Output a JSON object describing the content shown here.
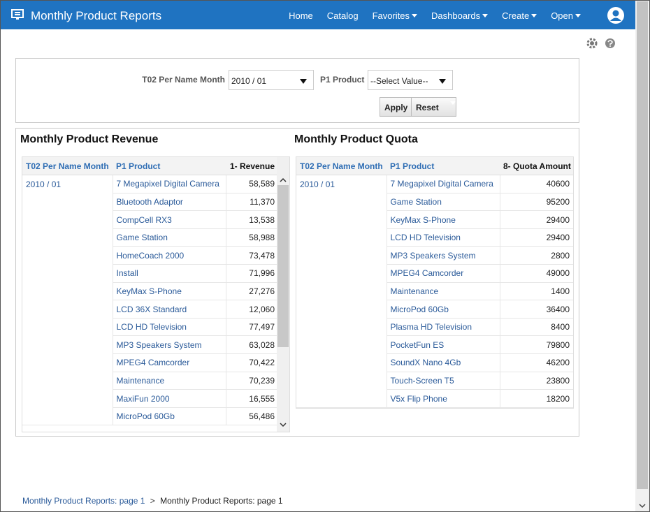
{
  "header": {
    "title": "Monthly Product Reports",
    "nav": [
      "Home",
      "Catalog",
      "Favorites",
      "Dashboards",
      "Create",
      "Open"
    ]
  },
  "prompts": {
    "month_label": "T02 Per Name Month",
    "month_value": "2010 / 01",
    "product_label": "P1 Product",
    "product_value": "--Select Value--",
    "apply": "Apply",
    "reset": "Reset"
  },
  "revenue": {
    "title": "Monthly Product Revenue",
    "columns": [
      "T02 Per Name Month",
      "P1 Product",
      "1- Revenue"
    ],
    "month": "2010 / 01",
    "rows": [
      [
        "7 Megapixel Digital Camera",
        "58,589"
      ],
      [
        "Bluetooth Adaptor",
        "11,370"
      ],
      [
        "CompCell RX3",
        "13,538"
      ],
      [
        "Game Station",
        "58,988"
      ],
      [
        "HomeCoach 2000",
        "73,478"
      ],
      [
        "Install",
        "71,996"
      ],
      [
        "KeyMax S-Phone",
        "27,276"
      ],
      [
        "LCD 36X Standard",
        "12,060"
      ],
      [
        "LCD HD Television",
        "77,497"
      ],
      [
        "MP3 Speakers System",
        "63,028"
      ],
      [
        "MPEG4 Camcorder",
        "70,422"
      ],
      [
        "Maintenance",
        "70,239"
      ],
      [
        "MaxiFun 2000",
        "16,555"
      ],
      [
        "MicroPod 60Gb",
        "56,486"
      ]
    ]
  },
  "quota": {
    "title": "Monthly Product Quota",
    "columns": [
      "T02 Per Name Month",
      "P1 Product",
      "8- Quota Amount"
    ],
    "month": "2010 / 01",
    "rows": [
      [
        "7 Megapixel Digital Camera",
        40600
      ],
      [
        "Game Station",
        95200
      ],
      [
        "KeyMax S-Phone",
        29400
      ],
      [
        "LCD HD Television",
        29400
      ],
      [
        "MP3 Speakers System",
        2800
      ],
      [
        "MPEG4 Camcorder",
        49000
      ],
      [
        "Maintenance",
        1400
      ],
      [
        "MicroPod 60Gb",
        36400
      ],
      [
        "Plasma HD Television",
        8400
      ],
      [
        "PocketFun ES",
        79800
      ],
      [
        "SoundX Nano 4Gb",
        46200
      ],
      [
        "Touch-Screen T5",
        23800
      ],
      [
        "V5x Flip Phone",
        18200
      ]
    ]
  },
  "breadcrumb": [
    "Monthly Product Reports: page 1",
    ">",
    "Monthly Product Reports: page 1"
  ]
}
